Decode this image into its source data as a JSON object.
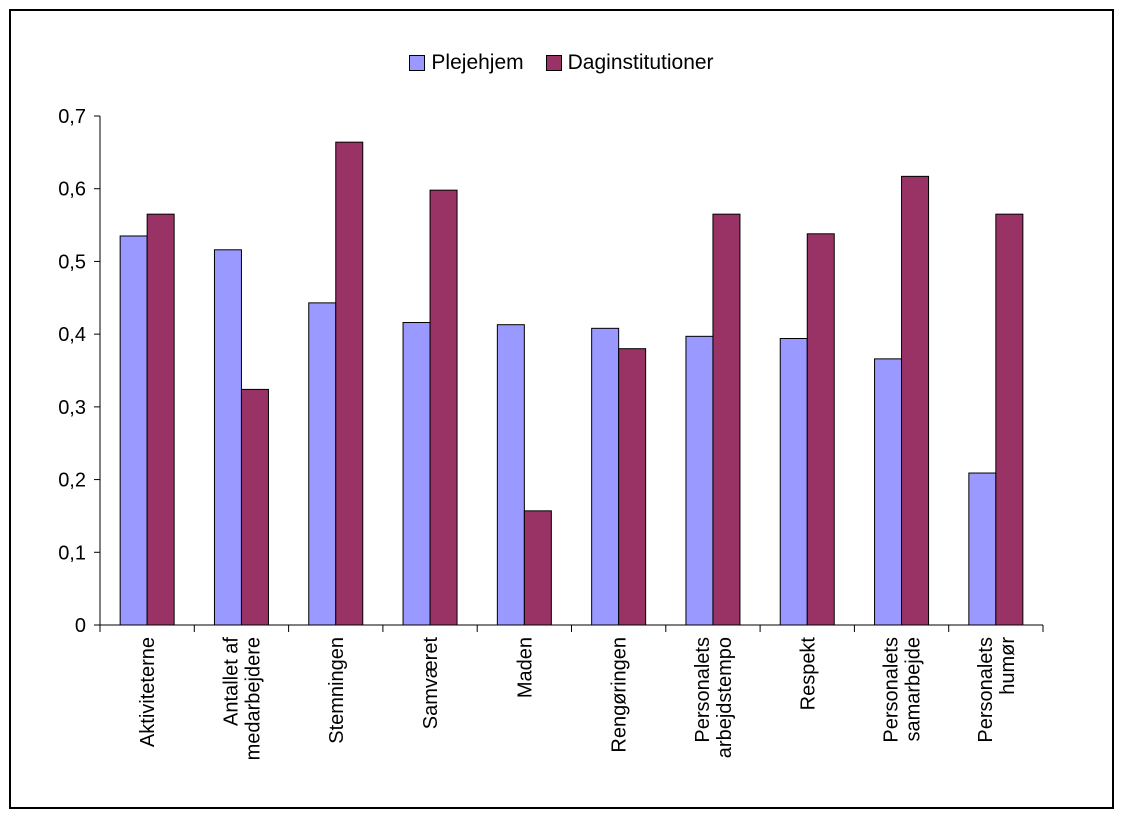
{
  "chart_data": {
    "type": "bar",
    "categories": [
      "Aktiviteterne",
      "Antallet af medarbejdere",
      "Stemningen",
      "Samværet",
      "Maden",
      "Rengøringen",
      "Personalets arbejdstempo",
      "Respekt",
      "Personalets samarbejde",
      "Personalets humør"
    ],
    "category_lines": [
      [
        "Aktiviteterne"
      ],
      [
        "Antallet af",
        "medarbejdere"
      ],
      [
        "Stemningen"
      ],
      [
        "Samværet"
      ],
      [
        "Maden"
      ],
      [
        "Rengøringen"
      ],
      [
        "Personalets",
        "arbejdstempo"
      ],
      [
        "Respekt"
      ],
      [
        "Personalets",
        "samarbejde"
      ],
      [
        "Personalets",
        "humør"
      ]
    ],
    "series": [
      {
        "name": "Plejehjem",
        "color": "#9999ff",
        "values": [
          0.535,
          0.516,
          0.443,
          0.416,
          0.413,
          0.408,
          0.397,
          0.394,
          0.366,
          0.209
        ]
      },
      {
        "name": "Daginstitutioner",
        "color": "#993366",
        "values": [
          0.565,
          0.324,
          0.664,
          0.598,
          0.157,
          0.38,
          0.565,
          0.538,
          0.617,
          0.565
        ]
      }
    ],
    "yticks": [
      "0",
      "0,1",
      "0,2",
      "0,3",
      "0,4",
      "0,5",
      "0,6",
      "0,7"
    ],
    "ylim": [
      0,
      0.7
    ],
    "grid": false,
    "legend_position": "top"
  }
}
